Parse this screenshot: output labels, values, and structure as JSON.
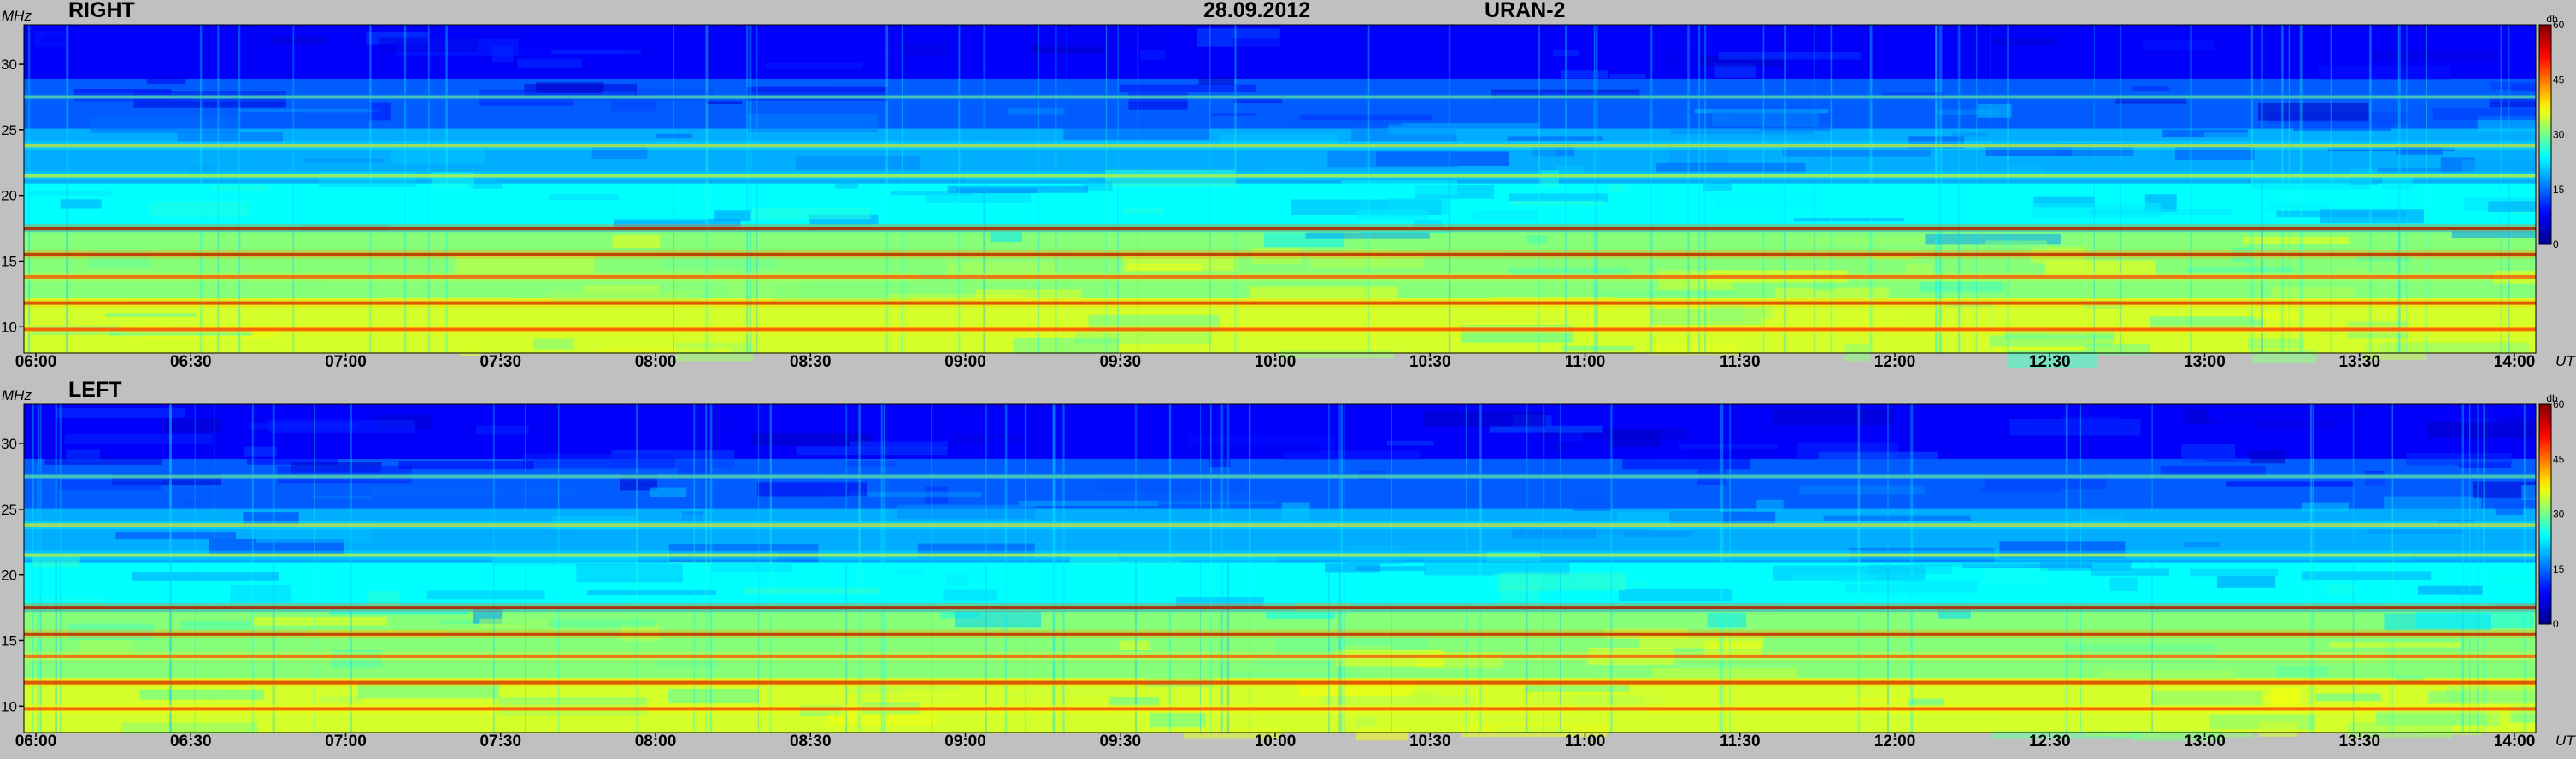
{
  "header": {
    "date": "28.09.2012",
    "instrument": "URAN-2"
  },
  "colorbar": {
    "unit": "db",
    "ticks": [
      "60",
      "45",
      "30",
      "15",
      "0"
    ],
    "colormap": "jet",
    "colors": [
      "#00008f",
      "#0000ff",
      "#00ffff",
      "#ffff00",
      "#ff0000",
      "#800000"
    ]
  },
  "chart_data": [
    {
      "type": "heatmap",
      "panel": "RIGHT",
      "ylabel": "MHz",
      "xlabel": "UT",
      "ylim": [
        8,
        33
      ],
      "zlim": [
        0,
        60
      ],
      "y_ticks": [
        "30",
        "25",
        "20",
        "15",
        "10"
      ],
      "x_ticks": [
        "06:00",
        "06:30",
        "07:00",
        "07:30",
        "08:00",
        "08:30",
        "09:00",
        "09:30",
        "10:00",
        "10:30",
        "11:00",
        "11:30",
        "12:00",
        "12:30",
        "13:00",
        "13:30",
        "14:00"
      ],
      "bands": [
        {
          "freq": 9.8,
          "level": 52
        },
        {
          "freq": 11.8,
          "level": 55
        },
        {
          "freq": 13.8,
          "level": 50
        },
        {
          "freq": 15.5,
          "level": 58
        },
        {
          "freq": 17.5,
          "level": 60
        },
        {
          "freq": 21.5,
          "level": 38
        },
        {
          "freq": 23.8,
          "level": 40
        },
        {
          "freq": 27.5,
          "level": 30
        }
      ]
    },
    {
      "type": "heatmap",
      "panel": "LEFT",
      "ylabel": "MHz",
      "xlabel": "UT",
      "ylim": [
        8,
        33
      ],
      "zlim": [
        0,
        60
      ],
      "y_ticks": [
        "30",
        "25",
        "20",
        "15",
        "10"
      ],
      "x_ticks": [
        "06:00",
        "06:30",
        "07:00",
        "07:30",
        "08:00",
        "08:30",
        "09:00",
        "09:30",
        "10:00",
        "10:30",
        "11:00",
        "11:30",
        "12:00",
        "12:30",
        "13:00",
        "13:30",
        "14:00"
      ],
      "bands": [
        {
          "freq": 9.8,
          "level": 52
        },
        {
          "freq": 11.8,
          "level": 55
        },
        {
          "freq": 13.8,
          "level": 50
        },
        {
          "freq": 15.5,
          "level": 58
        },
        {
          "freq": 17.5,
          "level": 60
        },
        {
          "freq": 21.5,
          "level": 38
        },
        {
          "freq": 23.8,
          "level": 40
        },
        {
          "freq": 27.5,
          "level": 30
        }
      ]
    }
  ]
}
